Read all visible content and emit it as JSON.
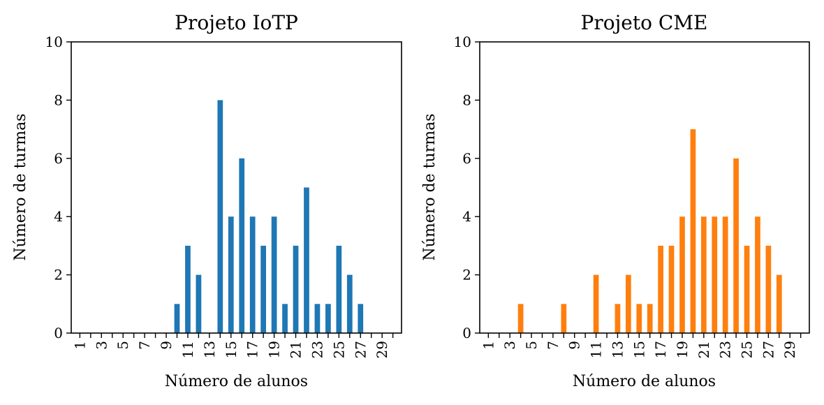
{
  "chart_data": [
    {
      "type": "bar",
      "title": "Projeto IoTP",
      "xlabel": "Número de alunos",
      "ylabel": "Número de turmas",
      "ylim": [
        0,
        10
      ],
      "yticks": [
        0,
        2,
        4,
        6,
        8,
        10
      ],
      "categories": [
        1,
        2,
        3,
        4,
        5,
        6,
        7,
        8,
        9,
        10,
        11,
        12,
        13,
        14,
        15,
        16,
        17,
        18,
        19,
        20,
        21,
        22,
        23,
        24,
        25,
        26,
        27,
        28,
        29,
        30
      ],
      "xtick_labels": [
        "1",
        "",
        "3",
        "",
        "5",
        "",
        "7",
        "",
        "9",
        "",
        "11",
        "",
        "13",
        "",
        "15",
        "",
        "17",
        "",
        "19",
        "",
        "21",
        "",
        "23",
        "",
        "25",
        "",
        "27",
        "",
        "29",
        ""
      ],
      "values": [
        0,
        0,
        0,
        0,
        0,
        0,
        0,
        0,
        0,
        1,
        3,
        2,
        0,
        8,
        4,
        6,
        4,
        3,
        4,
        1,
        3,
        5,
        1,
        1,
        3,
        2,
        1,
        0,
        0,
        0
      ],
      "color": "#1f77b4",
      "grid": false
    },
    {
      "type": "bar",
      "title": "Projeto CME",
      "xlabel": "Número de alunos",
      "ylabel": "Número de turmas",
      "ylim": [
        0,
        10
      ],
      "yticks": [
        0,
        2,
        4,
        6,
        8,
        10
      ],
      "categories": [
        1,
        2,
        3,
        4,
        5,
        6,
        7,
        8,
        9,
        10,
        11,
        12,
        13,
        14,
        15,
        16,
        17,
        18,
        19,
        20,
        21,
        22,
        23,
        24,
        25,
        26,
        27,
        28,
        29,
        30
      ],
      "xtick_labels": [
        "1",
        "",
        "3",
        "",
        "5",
        "",
        "7",
        "",
        "9",
        "",
        "11",
        "",
        "13",
        "",
        "15",
        "",
        "17",
        "",
        "19",
        "",
        "21",
        "",
        "23",
        "",
        "25",
        "",
        "27",
        "",
        "29",
        ""
      ],
      "values": [
        0,
        0,
        0,
        1,
        0,
        0,
        0,
        1,
        0,
        0,
        2,
        0,
        1,
        2,
        1,
        1,
        3,
        3,
        4,
        7,
        4,
        4,
        4,
        6,
        3,
        4,
        3,
        2,
        0,
        0
      ],
      "color": "#ff7f0e",
      "grid": false
    }
  ]
}
